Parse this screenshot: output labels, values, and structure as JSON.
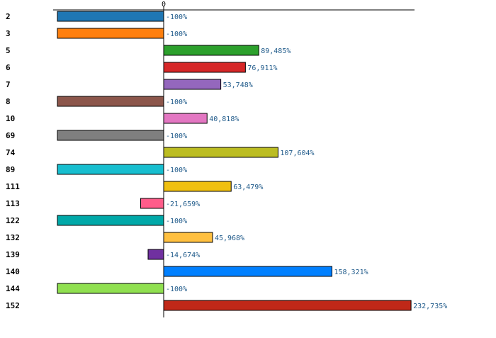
{
  "chart_data": {
    "type": "bar",
    "orientation": "horizontal",
    "title": "",
    "xlabel": "",
    "ylabel": "",
    "xlim": [
      -100,
      232.735
    ],
    "zero_tick_label": "0",
    "categories": [
      "2",
      "3",
      "5",
      "6",
      "7",
      "8",
      "10",
      "69",
      "74",
      "89",
      "111",
      "113",
      "122",
      "132",
      "139",
      "140",
      "144",
      "152"
    ],
    "values": [
      -100,
      -100,
      89.485,
      76.911,
      53.748,
      -100,
      40.818,
      -100,
      107.604,
      -100,
      63.479,
      -21.659,
      -100,
      45.968,
      -14.674,
      158.321,
      -100,
      232.735
    ],
    "value_labels": [
      "-100%",
      "-100%",
      "89,485%",
      "76,911%",
      "53,748%",
      "-100%",
      "40,818%",
      "-100%",
      "107,604%",
      "-100%",
      "63,479%",
      "-21,659%",
      "-100%",
      "45,968%",
      "-14,674%",
      "158,321%",
      "-100%",
      "232,735%"
    ],
    "colors": [
      "#1f77b4",
      "#ff7f0e",
      "#2ca02c",
      "#d62728",
      "#9467bd",
      "#8c564b",
      "#e377c2",
      "#7f7f7f",
      "#bcbd22",
      "#17becf",
      "#f0c010",
      "#ff5c8a",
      "#00a8a8",
      "#ffc040",
      "#7030a0",
      "#0080ff",
      "#90e050",
      "#c02818"
    ]
  }
}
